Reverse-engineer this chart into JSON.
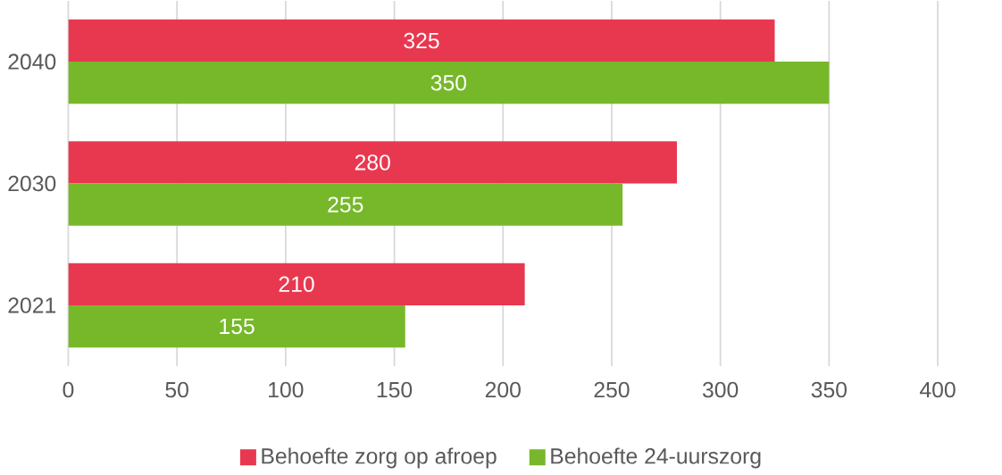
{
  "chart_data": {
    "type": "bar",
    "orientation": "horizontal",
    "categories": [
      "2040",
      "2030",
      "2021"
    ],
    "series": [
      {
        "name": "Behoefte zorg op afroep",
        "color": "#e8384f",
        "values": [
          325,
          280,
          210
        ]
      },
      {
        "name": "Behoefte 24-uurszorg",
        "color": "#76b82a",
        "values": [
          350,
          255,
          155
        ]
      }
    ],
    "xlim": [
      0,
      400
    ],
    "xticks": [
      0,
      50,
      100,
      150,
      200,
      250,
      300,
      350,
      400
    ],
    "grid": "x",
    "legend": "bottom",
    "data_labels": true
  }
}
